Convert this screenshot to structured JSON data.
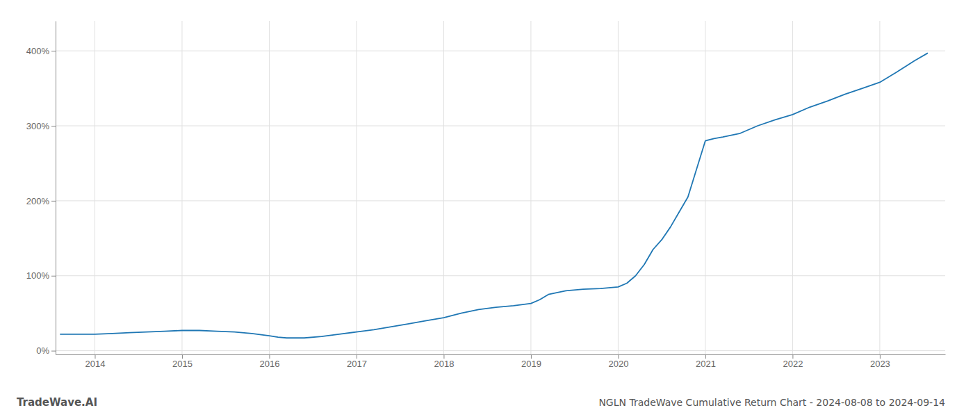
{
  "chart_data": {
    "type": "line",
    "title": "NGLN TradeWave Cumulative Return Chart - 2024-08-08 to 2024-09-14",
    "annotations": [
      "TradeWave.AI"
    ],
    "color": "#1f77b4",
    "grid": true,
    "x": [
      2013.6,
      2014.0,
      2014.2,
      2014.4,
      2014.6,
      2014.8,
      2015.0,
      2015.2,
      2015.4,
      2015.6,
      2015.8,
      2016.0,
      2016.1,
      2016.2,
      2016.4,
      2016.6,
      2016.8,
      2017.0,
      2017.2,
      2017.4,
      2017.6,
      2017.8,
      2018.0,
      2018.2,
      2018.4,
      2018.6,
      2018.8,
      2019.0,
      2019.1,
      2019.2,
      2019.4,
      2019.6,
      2019.8,
      2020.0,
      2020.1,
      2020.2,
      2020.3,
      2020.4,
      2020.5,
      2020.6,
      2020.7,
      2020.8,
      2021.0,
      2021.1,
      2021.2,
      2021.4,
      2021.6,
      2021.8,
      2022.0,
      2022.2,
      2022.4,
      2022.6,
      2022.8,
      2023.0,
      2023.2,
      2023.4,
      2023.55
    ],
    "values": [
      22,
      22,
      23,
      24,
      25,
      26,
      27,
      27,
      26,
      25,
      23,
      20,
      18,
      17,
      17,
      19,
      22,
      25,
      28,
      32,
      36,
      40,
      44,
      50,
      55,
      58,
      60,
      63,
      68,
      75,
      80,
      82,
      83,
      85,
      90,
      100,
      115,
      135,
      148,
      165,
      185,
      205,
      280,
      283,
      285,
      290,
      300,
      308,
      315,
      325,
      333,
      342,
      350,
      358,
      372,
      387,
      397
    ],
    "xlim": [
      2013.55,
      2023.75
    ],
    "xticks": [
      2014,
      2015,
      2016,
      2017,
      2018,
      2019,
      2020,
      2021,
      2022,
      2023
    ],
    "ylim": [
      -5,
      440
    ],
    "yticks": [
      {
        "value": 0,
        "label": "0%"
      },
      {
        "value": 100,
        "label": "100%"
      },
      {
        "value": 200,
        "label": "200%"
      },
      {
        "value": 300,
        "label": "300%"
      },
      {
        "value": 400,
        "label": "400%"
      }
    ]
  }
}
